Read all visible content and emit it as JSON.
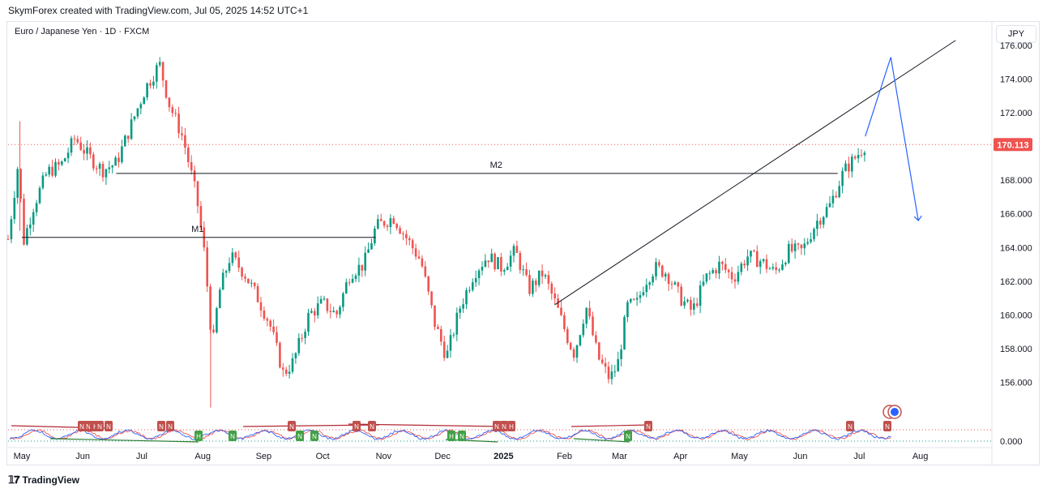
{
  "header": {
    "credit": "SkymForex created with TradingView.com, Jul 05, 2025 14:52 UTC+1"
  },
  "symbol": {
    "title": "Euro / Japanese Yen · 1D · FXCM"
  },
  "currency_button": "JPY",
  "footer": {
    "brand": "TradingView",
    "brand_icon": "tradingview-logo-icon"
  },
  "colors": {
    "up": "#089981",
    "down": "#ef5350",
    "projection": "#2962ff",
    "last_price": "#ef5350"
  },
  "chart_data": [
    {
      "type": "line",
      "title": "Euro / Japanese Yen · 1D · FXCM",
      "subtype": "candlestick",
      "currency": "JPY",
      "x_ticks": [
        "May",
        "Jun",
        "Jul",
        "Aug",
        "Sep",
        "Oct",
        "Nov",
        "Dec",
        "2025",
        "Feb",
        "Mar",
        "Apr",
        "May",
        "Jun",
        "Jul",
        "Aug"
      ],
      "y_ticks": [
        "156.000",
        "158.000",
        "160.000",
        "162.000",
        "164.000",
        "166.000",
        "168.000",
        "170.000",
        "172.000",
        "174.000",
        "176.000"
      ],
      "ylim": [
        154.5,
        176.2
      ],
      "last_price_label": "170.113",
      "last_price": 170.113,
      "grid": false,
      "series": [
        {
          "values": [
            [
              "2024-04-24",
              164.5
            ],
            [
              "2024-04-29",
              168.9
            ],
            [
              "2024-05-02",
              164.4
            ],
            [
              "2024-05-07",
              166.5
            ],
            [
              "2024-05-14",
              168.5
            ],
            [
              "2024-05-21",
              168.9
            ],
            [
              "2024-05-28",
              170.5
            ],
            [
              "2024-06-04",
              169.4
            ],
            [
              "2024-06-11",
              168.6
            ],
            [
              "2024-06-18",
              169.0
            ],
            [
              "2024-06-25",
              171.1
            ],
            [
              "2024-07-03",
              173.5
            ],
            [
              "2024-07-10",
              174.9
            ],
            [
              "2024-07-15",
              172.5
            ],
            [
              "2024-07-22",
              170.5
            ],
            [
              "2024-07-29",
              166.9
            ],
            [
              "2024-08-02",
              163.5
            ],
            [
              "2024-08-06",
              158.0
            ],
            [
              "2024-08-09",
              161.2
            ],
            [
              "2024-08-15",
              163.5
            ],
            [
              "2024-08-22",
              162.5
            ],
            [
              "2024-08-29",
              161.0
            ],
            [
              "2024-09-04",
              159.5
            ],
            [
              "2024-09-11",
              156.5
            ],
            [
              "2024-09-16",
              157.2
            ],
            [
              "2024-09-24",
              160.0
            ],
            [
              "2024-10-01",
              160.7
            ],
            [
              "2024-10-08",
              160.0
            ],
            [
              "2024-10-15",
              162.5
            ],
            [
              "2024-10-22",
              163.0
            ],
            [
              "2024-10-28",
              165.2
            ],
            [
              "2024-11-01",
              165.5
            ],
            [
              "2024-11-06",
              165.8
            ],
            [
              "2024-11-13",
              164.5
            ],
            [
              "2024-11-20",
              163.2
            ],
            [
              "2024-11-27",
              159.5
            ],
            [
              "2024-12-03",
              157.5
            ],
            [
              "2024-12-10",
              160.5
            ],
            [
              "2024-12-17",
              162.5
            ],
            [
              "2024-12-24",
              163.5
            ],
            [
              "2024-12-31",
              162.8
            ],
            [
              "2025-01-07",
              163.8
            ],
            [
              "2025-01-14",
              161.5
            ],
            [
              "2025-01-21",
              162.5
            ],
            [
              "2025-01-28",
              160.5
            ],
            [
              "2025-02-03",
              158.5
            ],
            [
              "2025-02-06",
              157.7
            ],
            [
              "2025-02-12",
              160.5
            ],
            [
              "2025-02-18",
              157.5
            ],
            [
              "2025-02-24",
              156.2
            ],
            [
              "2025-02-28",
              157.0
            ],
            [
              "2025-03-05",
              160.5
            ],
            [
              "2025-03-10",
              160.7
            ],
            [
              "2025-03-14",
              162.0
            ],
            [
              "2025-03-19",
              162.8
            ],
            [
              "2025-03-25",
              162.5
            ],
            [
              "2025-04-01",
              161.0
            ],
            [
              "2025-04-07",
              160.2
            ],
            [
              "2025-04-14",
              162.2
            ],
            [
              "2025-04-21",
              163.0
            ],
            [
              "2025-04-28",
              162.2
            ],
            [
              "2025-05-05",
              163.5
            ],
            [
              "2025-05-12",
              163.2
            ],
            [
              "2025-05-19",
              162.5
            ],
            [
              "2025-05-26",
              163.8
            ],
            [
              "2025-06-02",
              163.8
            ],
            [
              "2025-06-09",
              165.5
            ],
            [
              "2025-06-16",
              166.5
            ],
            [
              "2025-06-23",
              168.5
            ],
            [
              "2025-06-30",
              169.5
            ],
            [
              "2025-07-04",
              170.113
            ]
          ]
        }
      ],
      "annotations": [
        {
          "label": "M1",
          "type": "horizontal",
          "price": 164.6,
          "from": "2024-05-01",
          "to": "2024-10-28"
        },
        {
          "label": "M2",
          "type": "horizontal",
          "price": 168.4,
          "from": "2024-06-18",
          "to": "2025-06-20"
        },
        {
          "type": "trendline",
          "from": [
            "2025-01-27",
            160.6
          ],
          "to": [
            "2025-08-19",
            176.3
          ]
        },
        {
          "type": "projection",
          "points": [
            [
              "2025-07-04",
              170.6
            ],
            [
              "2025-07-17",
              175.3
            ],
            [
              "2025-07-31",
              165.6
            ]
          ]
        }
      ],
      "oscillator": {
        "y_ticks": [
          "0.000"
        ],
        "marker_labels": [
          "N",
          "N",
          "N",
          "N",
          "N",
          "N",
          "H",
          "N",
          "N",
          "N",
          "N",
          "N",
          "H",
          "N",
          "N",
          "N",
          "H",
          "N",
          "N",
          "N",
          "N",
          "H",
          "N",
          "N"
        ]
      }
    }
  ]
}
